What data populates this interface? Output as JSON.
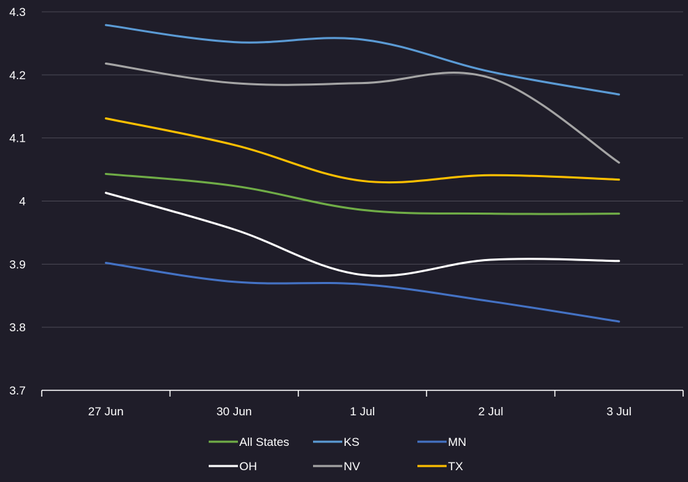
{
  "chart_data": {
    "type": "line",
    "title": "",
    "xlabel": "",
    "ylabel": "",
    "categories": [
      "27 Jun",
      "30 Jun",
      "1 Jul",
      "2 Jul",
      "3 Jul"
    ],
    "ylim": [
      3.7,
      4.3
    ],
    "yticks": [
      "3.7",
      "3.8",
      "3.9",
      "4",
      "4.1",
      "4.2",
      "4.3"
    ],
    "grid": true,
    "legend_position": "bottom",
    "background": "#1f1d29",
    "series": [
      {
        "name": "All States",
        "color": "#70ad47",
        "values": [
          4.043,
          4.024,
          3.986,
          3.98,
          3.98
        ]
      },
      {
        "name": "KS",
        "color": "#5b9bd5",
        "values": [
          4.279,
          4.252,
          4.256,
          4.205,
          4.169
        ]
      },
      {
        "name": "MN",
        "color": "#4472c4",
        "values": [
          3.902,
          3.872,
          3.868,
          3.841,
          3.809
        ]
      },
      {
        "name": "OH",
        "color": "#ffffff",
        "values": [
          4.013,
          3.955,
          3.883,
          3.907,
          3.905
        ]
      },
      {
        "name": "NV",
        "color": "#a5a5a5",
        "values": [
          4.218,
          4.187,
          4.187,
          4.195,
          4.061
        ]
      },
      {
        "name": "TX",
        "color": "#ffc000",
        "values": [
          4.131,
          4.089,
          4.032,
          4.041,
          4.034
        ]
      }
    ]
  }
}
